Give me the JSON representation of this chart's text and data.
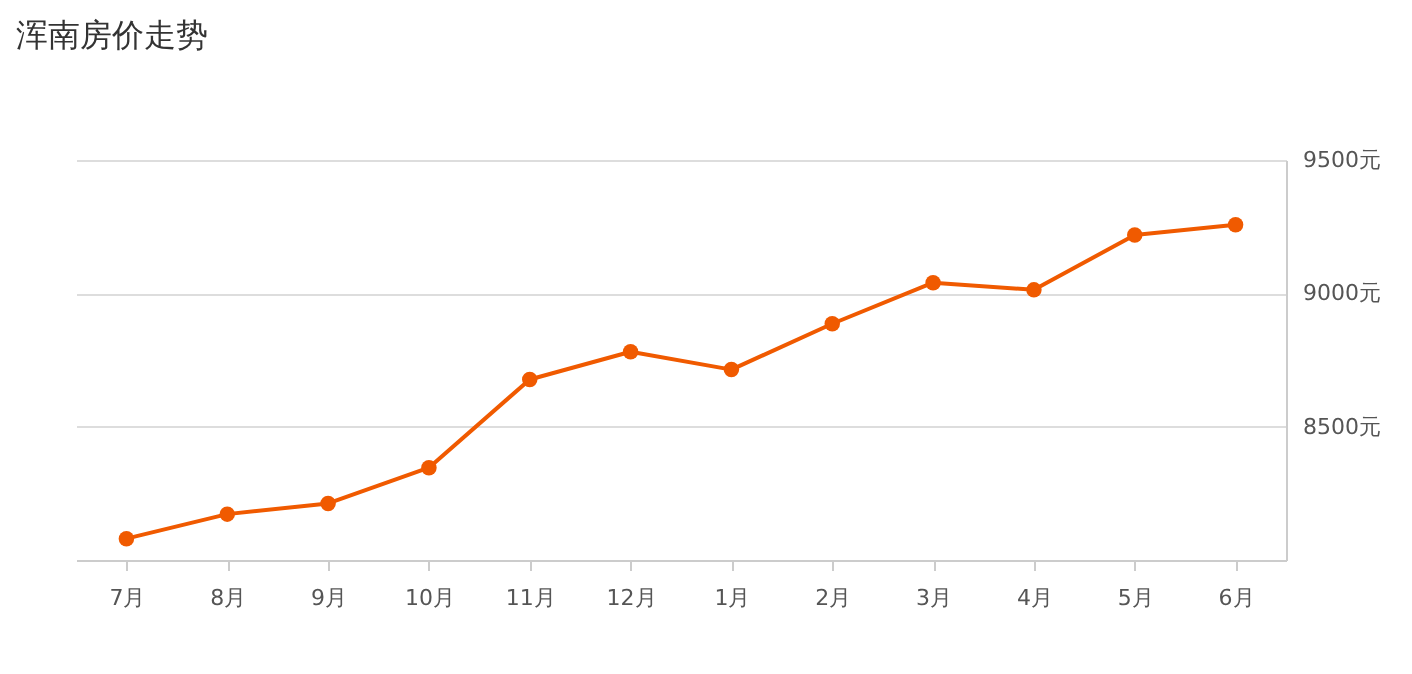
{
  "chart_data": {
    "type": "line",
    "title": "浑南房价走势",
    "categories": [
      "7月",
      "8月",
      "9月",
      "10月",
      "11月",
      "12月",
      "1月",
      "2月",
      "3月",
      "4月",
      "5月",
      "6月"
    ],
    "series": [
      {
        "color": "#f05a00",
        "values": [
          8080,
          8172,
          8212,
          8346,
          8677,
          8781,
          8714,
          8886,
          9040,
          9013,
          9219,
          9257
        ]
      }
    ],
    "ylim": [
      8000,
      9500
    ],
    "yticks": [
      {
        "value": 8500,
        "label": "8500元"
      },
      {
        "value": 9000,
        "label": "9000元"
      },
      {
        "value": 9500,
        "label": "9500元"
      }
    ],
    "grid": "y",
    "marker": "circle",
    "line_style": "solid"
  }
}
